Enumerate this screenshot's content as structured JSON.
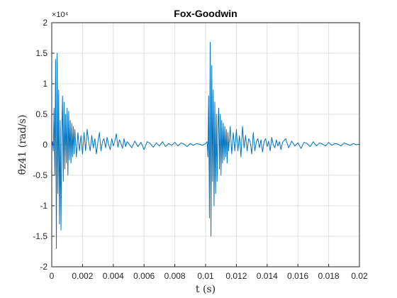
{
  "chart_data": {
    "type": "line",
    "title": "Fox-Goodwin",
    "xlabel": "t (s)",
    "ylabel": "θ̈z41 (rad/s)",
    "y_multiplier": "×10⁴",
    "xlim": [
      0,
      0.02
    ],
    "ylim": [
      -2,
      2
    ],
    "y_scale_note": "values in units of 10^4",
    "x_ticks": [
      "0",
      "0.002",
      "0.004",
      "0.006",
      "0.008",
      "0.01",
      "0.012",
      "0.014",
      "0.016",
      "0.018",
      "0.02"
    ],
    "y_ticks": [
      "-2",
      "-1.5",
      "-1",
      "-0.5",
      "0",
      "0.5",
      "1",
      "1.5",
      "2"
    ],
    "grid": true,
    "series": [
      {
        "color": "#0072bd",
        "x": [
          0.0,
          5e-05,
          0.0001,
          0.00015,
          0.0002,
          0.00025,
          0.0003,
          0.00035,
          0.0004,
          0.00045,
          0.0005,
          0.00055,
          0.0006,
          0.00065,
          0.0007,
          0.00075,
          0.0008,
          0.00085,
          0.0009,
          0.00095,
          0.001,
          0.00105,
          0.0011,
          0.00115,
          0.0012,
          0.00125,
          0.0013,
          0.00135,
          0.0014,
          0.00145,
          0.0015,
          0.0016,
          0.0017,
          0.0018,
          0.0019,
          0.002,
          0.0021,
          0.0022,
          0.0023,
          0.0024,
          0.0025,
          0.0026,
          0.0027,
          0.0028,
          0.0029,
          0.003,
          0.0031,
          0.0032,
          0.0033,
          0.0034,
          0.0035,
          0.0036,
          0.0037,
          0.0038,
          0.0039,
          0.004,
          0.0041,
          0.0042,
          0.0043,
          0.0044,
          0.0045,
          0.0046,
          0.0047,
          0.0048,
          0.0049,
          0.005,
          0.0052,
          0.0054,
          0.0056,
          0.0058,
          0.006,
          0.0062,
          0.0064,
          0.0066,
          0.0068,
          0.007,
          0.0072,
          0.0074,
          0.0076,
          0.0078,
          0.008,
          0.0082,
          0.0084,
          0.0086,
          0.0088,
          0.009,
          0.0092,
          0.0094,
          0.0096,
          0.0098,
          0.01,
          0.0101,
          0.01015,
          0.0102,
          0.01025,
          0.0103,
          0.01035,
          0.0104,
          0.01045,
          0.0105,
          0.01055,
          0.0106,
          0.01065,
          0.0107,
          0.01075,
          0.0108,
          0.01085,
          0.0109,
          0.01095,
          0.011,
          0.01105,
          0.0111,
          0.01115,
          0.0112,
          0.01125,
          0.0113,
          0.01135,
          0.0114,
          0.01145,
          0.0115,
          0.0116,
          0.0117,
          0.0118,
          0.0119,
          0.012,
          0.0121,
          0.0122,
          0.0123,
          0.0124,
          0.0125,
          0.0126,
          0.0127,
          0.0128,
          0.0129,
          0.013,
          0.0131,
          0.0132,
          0.0133,
          0.0134,
          0.0135,
          0.0136,
          0.0137,
          0.0138,
          0.0139,
          0.014,
          0.0141,
          0.0142,
          0.0143,
          0.0144,
          0.0145,
          0.0146,
          0.0147,
          0.0148,
          0.0149,
          0.015,
          0.0152,
          0.0154,
          0.0156,
          0.0158,
          0.016,
          0.0162,
          0.0164,
          0.0166,
          0.0168,
          0.017,
          0.0172,
          0.0174,
          0.0176,
          0.0178,
          0.018,
          0.0182,
          0.0184,
          0.0186,
          0.0188,
          0.019,
          0.0192,
          0.0194,
          0.0196,
          0.0198,
          0.02
        ],
        "y": [
          0.0,
          0.05,
          -0.1,
          0.6,
          -0.5,
          1.4,
          -1.7,
          1.5,
          -0.8,
          0.9,
          -1.3,
          0.4,
          -1.4,
          0.2,
          0.8,
          -0.6,
          0.7,
          -0.4,
          0.5,
          -0.3,
          0.6,
          -0.5,
          0.55,
          -0.25,
          0.4,
          -0.3,
          0.35,
          -0.2,
          0.3,
          -0.15,
          0.25,
          -0.2,
          0.2,
          -0.1,
          0.15,
          -0.15,
          0.2,
          -0.1,
          0.25,
          0.05,
          -0.1,
          0.15,
          -0.05,
          0.1,
          -0.15,
          0.05,
          0.2,
          -0.1,
          0.05,
          0.1,
          -0.05,
          0.12,
          0.0,
          -0.08,
          0.1,
          -0.02,
          0.06,
          0.18,
          -0.04,
          0.08,
          0.02,
          -0.06,
          0.1,
          -0.03,
          0.05,
          0.02,
          -0.05,
          0.06,
          -0.03,
          0.04,
          -0.08,
          0.05,
          0.02,
          -0.04,
          0.03,
          -0.02,
          0.05,
          -0.03,
          0.02,
          -0.01,
          0.04,
          -0.02,
          0.03,
          0.01,
          -0.03,
          0.02,
          -0.01,
          0.02,
          0.01,
          -0.01,
          0.02,
          0.05,
          -0.2,
          0.8,
          -1.2,
          1.68,
          -1.5,
          1.3,
          -0.6,
          0.9,
          -1.0,
          0.7,
          -0.8,
          0.5,
          -0.6,
          0.3,
          0.6,
          -0.4,
          0.5,
          -0.5,
          0.4,
          -0.3,
          0.35,
          -0.25,
          0.3,
          -0.2,
          0.25,
          -0.3,
          0.2,
          -0.1,
          0.3,
          -0.15,
          0.2,
          -0.1,
          0.25,
          -0.1,
          0.15,
          -0.2,
          0.3,
          -0.05,
          0.15,
          -0.1,
          0.1,
          0.05,
          -0.15,
          0.2,
          -0.1,
          0.05,
          0.1,
          -0.05,
          0.08,
          -0.12,
          0.05,
          0.1,
          -0.03,
          0.06,
          -0.1,
          0.12,
          0.0,
          -0.05,
          0.08,
          -0.02,
          0.05,
          -0.08,
          0.04,
          0.1,
          -0.05,
          0.06,
          -0.02,
          0.03,
          -0.06,
          0.04,
          0.02,
          -0.03,
          0.05,
          -0.02,
          0.03,
          0.01,
          -0.02,
          0.04,
          -0.01,
          0.02,
          0.01,
          -0.02,
          0.03,
          0.01,
          -0.01,
          0.02,
          0.0,
          0.01
        ]
      }
    ]
  }
}
